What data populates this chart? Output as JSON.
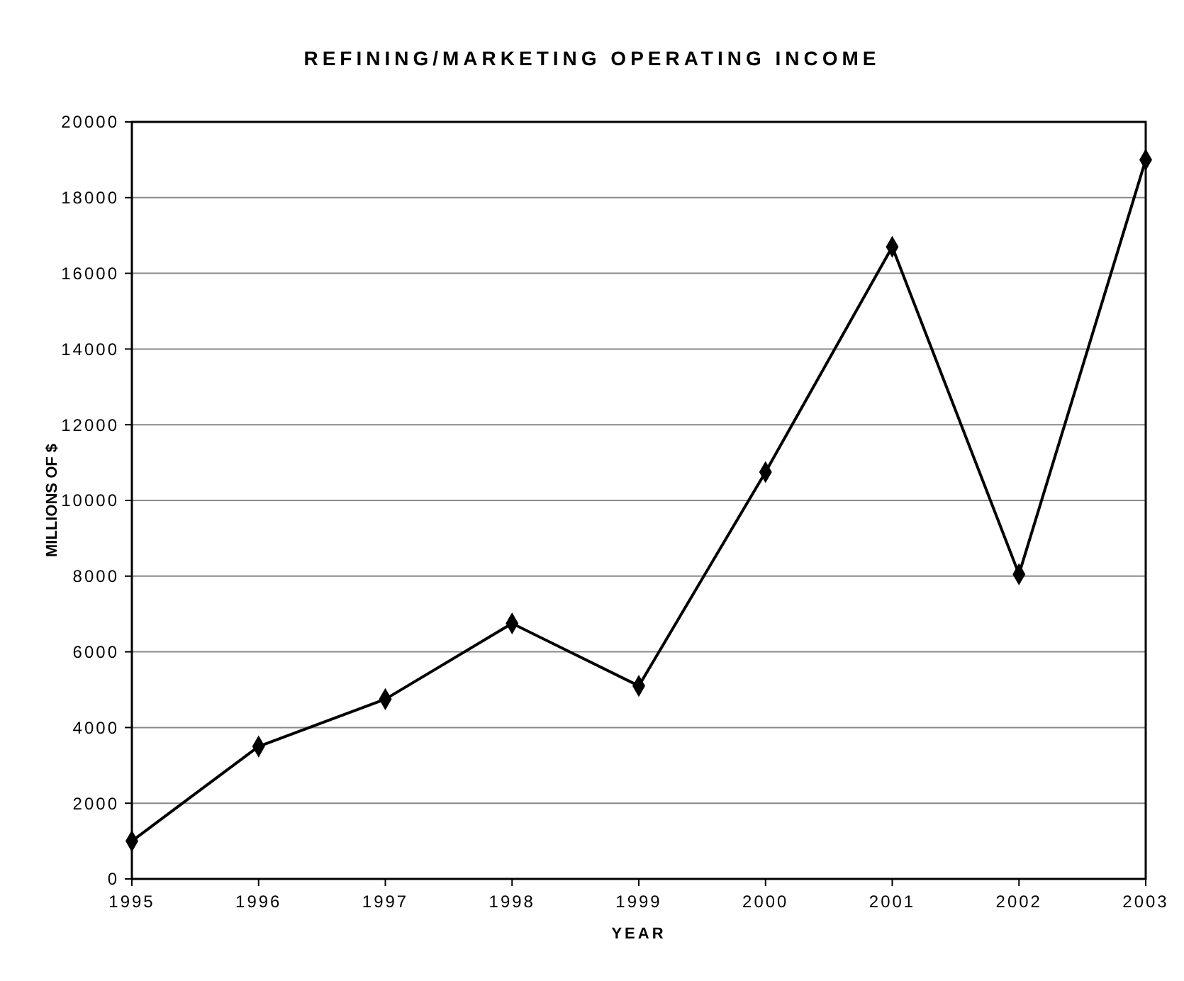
{
  "chart_data": {
    "type": "line",
    "title": "REFINING/MARKETING OPERATING INCOME",
    "xlabel": "YEAR",
    "ylabel": "MILLIONS OF $",
    "x": [
      1995,
      1996,
      1997,
      1998,
      1999,
      2000,
      2001,
      2002,
      2003
    ],
    "series": [
      {
        "color": "#000000",
        "values": [
          1000,
          3500,
          4750,
          6750,
          5100,
          10750,
          16700,
          8050,
          19000
        ]
      }
    ],
    "xlim": [
      1995,
      2003
    ],
    "xticks": [
      1995,
      1996,
      1997,
      1998,
      1999,
      2000,
      2001,
      2002,
      2003
    ],
    "ylim": [
      0,
      20000
    ],
    "yticks": [
      0,
      2000,
      4000,
      6000,
      8000,
      10000,
      12000,
      14000,
      16000,
      18000,
      20000
    ],
    "grid": "y",
    "marker": "diamond",
    "line_style": "solid"
  }
}
